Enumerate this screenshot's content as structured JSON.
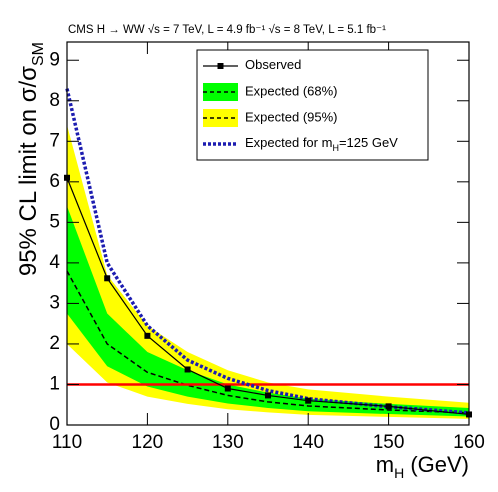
{
  "chart_data": {
    "type": "limit",
    "title": "CMS H → WW  √s = 7 TeV, L = 4.9 fb⁻¹  √s = 8 TeV, L = 5.1 fb⁻¹",
    "x_label": [
      "m",
      "H",
      " (GeV)"
    ],
    "y_label": [
      "95% CL limit on σ/σ",
      "SM"
    ],
    "x": [
      110,
      115,
      120,
      125,
      130,
      135,
      140,
      150,
      160
    ],
    "xlim": [
      110,
      160
    ],
    "xticks": [
      110,
      120,
      130,
      140,
      150,
      160
    ],
    "ylim": [
      0,
      9.45
    ],
    "yticks": [
      0,
      1,
      2,
      3,
      4,
      5,
      6,
      7,
      8,
      9
    ],
    "bands": [
      {
        "name": "Expected (95%)",
        "color": "#ffff00",
        "lower": [
          2.0,
          1.05,
          0.7,
          0.52,
          0.39,
          0.31,
          0.25,
          0.2,
          0.15
        ],
        "upper": [
          7.4,
          3.7,
          2.45,
          1.8,
          1.35,
          1.05,
          0.88,
          0.7,
          0.55
        ]
      },
      {
        "name": "Expected (68%)",
        "color": "#00ff00",
        "lower": [
          2.75,
          1.45,
          0.95,
          0.7,
          0.53,
          0.42,
          0.34,
          0.27,
          0.21
        ],
        "upper": [
          5.4,
          2.75,
          1.8,
          1.35,
          1.0,
          0.8,
          0.65,
          0.52,
          0.42
        ],
        "median": [
          3.8,
          2.0,
          1.3,
          0.98,
          0.73,
          0.57,
          0.47,
          0.37,
          0.3
        ]
      }
    ],
    "series": [
      {
        "name": [
          "Expected for m",
          "H",
          "=125 GeV"
        ],
        "color": "#1c1cb0",
        "style": "dotted",
        "values": [
          8.3,
          4.0,
          2.45,
          1.6,
          1.15,
          0.85,
          0.65,
          0.45,
          0.3
        ]
      },
      {
        "name": [
          "Observed"
        ],
        "color": "#000000",
        "style": "solid-markers",
        "values": [
          6.1,
          3.62,
          2.2,
          1.37,
          0.9,
          0.73,
          0.6,
          0.46,
          0.26
        ]
      }
    ],
    "reference_line": {
      "value": 1,
      "color": "#ff0000"
    }
  }
}
